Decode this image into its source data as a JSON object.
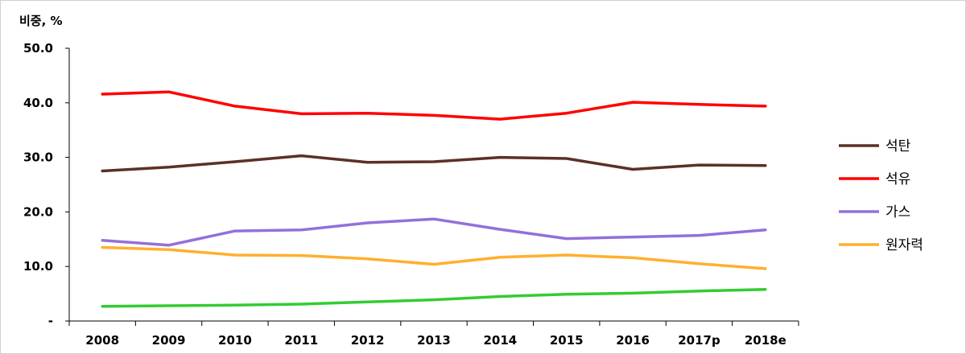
{
  "chart_data": {
    "type": "line",
    "title": "",
    "ylabel": "비중, %",
    "xlabel": "",
    "categories": [
      "2008",
      "2009",
      "2010",
      "2011",
      "2012",
      "2013",
      "2014",
      "2015",
      "2016",
      "2017p",
      "2018e"
    ],
    "y_ticks": [
      "-",
      "10.0",
      "20.0",
      "30.0",
      "40.0",
      "50.0"
    ],
    "ylim": [
      0,
      50
    ],
    "grid": false,
    "legend_position": "right",
    "series": [
      {
        "name": "석탄",
        "color": "#5b3126",
        "values": [
          27.5,
          28.2,
          29.2,
          30.3,
          29.1,
          29.2,
          30.0,
          29.8,
          27.8,
          28.6,
          28.5
        ]
      },
      {
        "name": "석유",
        "color": "#ff0000",
        "values": [
          41.6,
          42.0,
          39.4,
          38.0,
          38.1,
          37.7,
          37.0,
          38.1,
          40.1,
          39.7,
          39.4
        ]
      },
      {
        "name": "가스",
        "color": "#9370db",
        "values": [
          14.8,
          13.9,
          16.5,
          16.7,
          18.0,
          18.7,
          16.8,
          15.1,
          15.4,
          15.7,
          16.7
        ]
      },
      {
        "name": "원자력",
        "color": "#ffb02e",
        "values": [
          13.5,
          13.1,
          12.1,
          12.0,
          11.4,
          10.4,
          11.7,
          12.1,
          11.6,
          10.5,
          9.6
        ]
      },
      {
        "name": "",
        "color": "#33cc33",
        "values": [
          2.7,
          2.8,
          2.9,
          3.1,
          3.5,
          3.9,
          4.5,
          4.9,
          5.1,
          5.5,
          5.8
        ]
      }
    ]
  }
}
